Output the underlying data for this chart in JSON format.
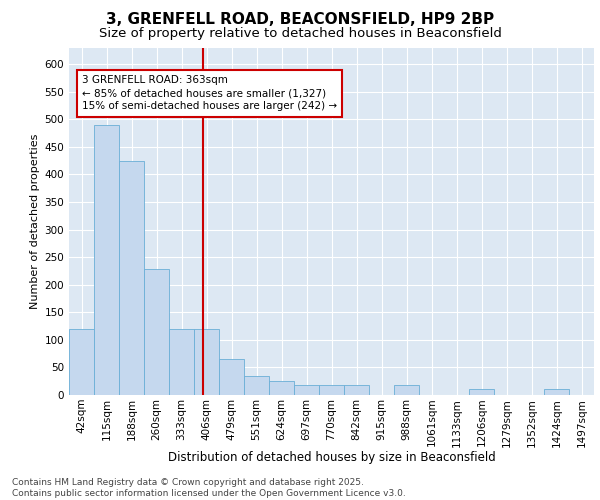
{
  "title1": "3, GRENFELL ROAD, BEACONSFIELD, HP9 2BP",
  "title2": "Size of property relative to detached houses in Beaconsfield",
  "xlabel": "Distribution of detached houses by size in Beaconsfield",
  "ylabel": "Number of detached properties",
  "categories": [
    "42sqm",
    "115sqm",
    "188sqm",
    "260sqm",
    "333sqm",
    "406sqm",
    "479sqm",
    "551sqm",
    "624sqm",
    "697sqm",
    "770sqm",
    "842sqm",
    "915sqm",
    "988sqm",
    "1061sqm",
    "1133sqm",
    "1206sqm",
    "1279sqm",
    "1352sqm",
    "1424sqm",
    "1497sqm"
  ],
  "values": [
    120,
    490,
    425,
    228,
    120,
    120,
    65,
    35,
    25,
    18,
    18,
    18,
    0,
    18,
    0,
    0,
    10,
    0,
    0,
    10,
    0
  ],
  "bar_color": "#c5d8ee",
  "bar_edge_color": "#6aaed6",
  "background_color": "#dde8f3",
  "grid_color": "#ffffff",
  "red_line_x": 4.85,
  "annotation_text": "3 GRENFELL ROAD: 363sqm\n← 85% of detached houses are smaller (1,327)\n15% of semi-detached houses are larger (242) →",
  "ylim": [
    0,
    630
  ],
  "yticks": [
    0,
    50,
    100,
    150,
    200,
    250,
    300,
    350,
    400,
    450,
    500,
    550,
    600
  ],
  "footer": "Contains HM Land Registry data © Crown copyright and database right 2025.\nContains public sector information licensed under the Open Government Licence v3.0.",
  "title1_fontsize": 11,
  "title2_fontsize": 9.5,
  "xlabel_fontsize": 8.5,
  "ylabel_fontsize": 8,
  "tick_fontsize": 7.5,
  "annotation_fontsize": 7.5,
  "footer_fontsize": 6.5
}
